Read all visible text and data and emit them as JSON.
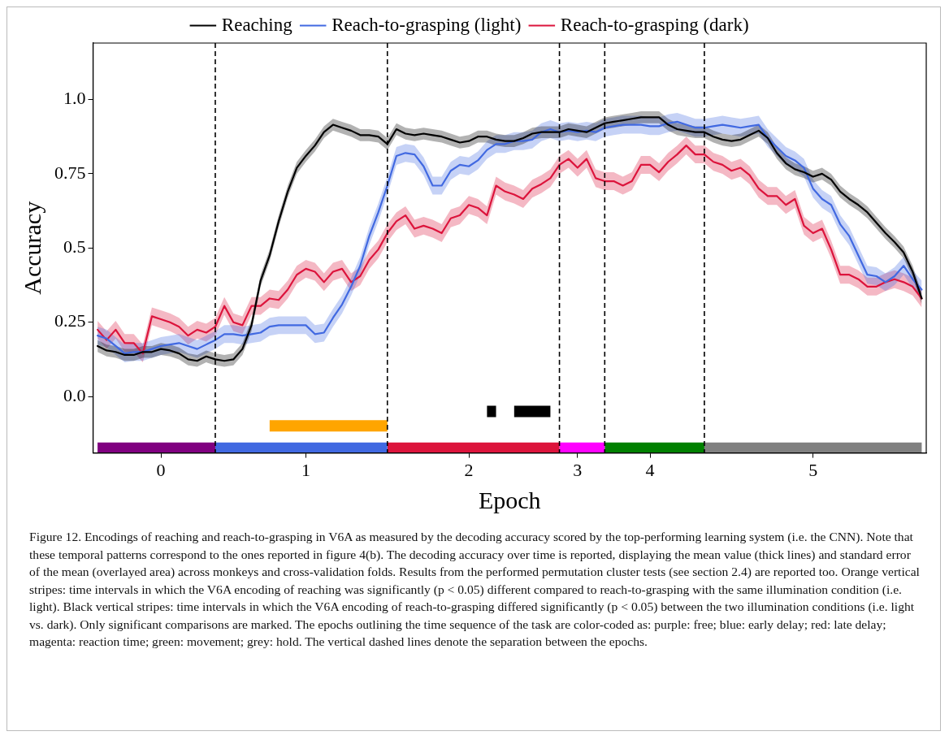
{
  "chart_data": {
    "type": "line",
    "xlabel": "Epoch",
    "ylabel": "Accuracy",
    "legend": "top",
    "line_style": "solid",
    "categories": [
      null,
      null,
      null,
      null,
      null,
      null,
      null,
      "0",
      null,
      null,
      null,
      null,
      null,
      null,
      null,
      null,
      null,
      null,
      null,
      null,
      null,
      null,
      null,
      "1",
      null,
      null,
      null,
      null,
      null,
      null,
      null,
      null,
      null,
      null,
      null,
      null,
      null,
      null,
      null,
      null,
      null,
      "2",
      null,
      null,
      null,
      null,
      null,
      null,
      null,
      null,
      null,
      null,
      null,
      "3",
      null,
      null,
      null,
      null,
      null,
      null,
      null,
      "4",
      null,
      null,
      null,
      null,
      null,
      null,
      null,
      null,
      null,
      null,
      null,
      null,
      null,
      null,
      null,
      null,
      null,
      "5",
      null,
      null,
      null,
      null,
      null,
      null,
      null,
      null,
      null,
      null,
      null,
      null
    ],
    "ylim": [
      -0.19,
      1.19
    ],
    "yticks": [
      {
        "value": 0,
        "label": "0.0"
      },
      0.25,
      0.5,
      0.75,
      {
        "value": 1,
        "label": "1.0"
      }
    ],
    "series": [
      {
        "name": "Reaching",
        "color": "#000000",
        "values": [
          0.17,
          0.155,
          0.15,
          0.14,
          0.14,
          0.15,
          0.15,
          0.16,
          0.155,
          0.145,
          0.125,
          0.12,
          0.135,
          0.125,
          0.12,
          0.125,
          0.16,
          0.24,
          0.39,
          0.475,
          0.59,
          0.69,
          0.77,
          0.81,
          0.845,
          0.89,
          0.915,
          0.905,
          0.895,
          0.88,
          0.88,
          0.875,
          0.85,
          0.9,
          0.885,
          0.88,
          0.885,
          0.88,
          0.875,
          0.865,
          0.855,
          0.86,
          0.875,
          0.875,
          0.865,
          0.86,
          0.86,
          0.87,
          0.885,
          0.89,
          0.89,
          0.89,
          0.9,
          0.895,
          0.89,
          0.905,
          0.92,
          0.925,
          0.93,
          0.935,
          0.94,
          0.94,
          0.94,
          0.915,
          0.9,
          0.895,
          0.89,
          0.89,
          0.875,
          0.865,
          0.86,
          0.865,
          0.88,
          0.895,
          0.87,
          0.82,
          0.785,
          0.765,
          0.755,
          0.74,
          0.75,
          0.73,
          0.69,
          0.665,
          0.645,
          0.62,
          0.585,
          0.55,
          0.52,
          0.485,
          0.42,
          0.33
        ],
        "lower": [
          0.15,
          0.135,
          0.13,
          0.12,
          0.12,
          0.13,
          0.13,
          0.14,
          0.135,
          0.125,
          0.105,
          0.1,
          0.115,
          0.105,
          0.1,
          0.105,
          0.14,
          0.22,
          0.37,
          0.455,
          0.57,
          0.67,
          0.75,
          0.79,
          0.825,
          0.87,
          0.895,
          0.885,
          0.875,
          0.86,
          0.86,
          0.855,
          0.83,
          0.88,
          0.865,
          0.86,
          0.865,
          0.86,
          0.855,
          0.845,
          0.835,
          0.84,
          0.855,
          0.855,
          0.845,
          0.84,
          0.84,
          0.85,
          0.865,
          0.87,
          0.87,
          0.87,
          0.88,
          0.875,
          0.87,
          0.885,
          0.9,
          0.905,
          0.91,
          0.915,
          0.92,
          0.92,
          0.92,
          0.895,
          0.88,
          0.875,
          0.87,
          0.87,
          0.855,
          0.845,
          0.84,
          0.845,
          0.86,
          0.875,
          0.85,
          0.8,
          0.765,
          0.745,
          0.735,
          0.72,
          0.73,
          0.71,
          0.67,
          0.645,
          0.625,
          0.6,
          0.565,
          0.53,
          0.5,
          0.465,
          0.4,
          0.31
        ],
        "upper": [
          0.19,
          0.175,
          0.17,
          0.16,
          0.16,
          0.17,
          0.17,
          0.18,
          0.175,
          0.165,
          0.145,
          0.14,
          0.155,
          0.145,
          0.14,
          0.145,
          0.18,
          0.26,
          0.41,
          0.495,
          0.61,
          0.71,
          0.79,
          0.83,
          0.865,
          0.91,
          0.935,
          0.925,
          0.915,
          0.9,
          0.9,
          0.895,
          0.87,
          0.92,
          0.905,
          0.9,
          0.905,
          0.9,
          0.895,
          0.885,
          0.875,
          0.88,
          0.895,
          0.895,
          0.885,
          0.88,
          0.88,
          0.89,
          0.905,
          0.91,
          0.91,
          0.91,
          0.92,
          0.915,
          0.91,
          0.925,
          0.94,
          0.945,
          0.95,
          0.955,
          0.96,
          0.96,
          0.96,
          0.935,
          0.92,
          0.915,
          0.91,
          0.91,
          0.895,
          0.885,
          0.88,
          0.885,
          0.9,
          0.915,
          0.89,
          0.84,
          0.805,
          0.785,
          0.775,
          0.76,
          0.77,
          0.75,
          0.71,
          0.685,
          0.665,
          0.64,
          0.605,
          0.57,
          0.54,
          0.505,
          0.44,
          0.35
        ]
      },
      {
        "name": "Reach-to-grasping (light)",
        "color": "#4169e1",
        "values": [
          0.205,
          0.195,
          0.17,
          0.145,
          0.15,
          0.15,
          0.16,
          0.17,
          0.175,
          0.18,
          0.17,
          0.16,
          0.175,
          0.19,
          0.21,
          0.21,
          0.205,
          0.21,
          0.215,
          0.235,
          0.24,
          0.24,
          0.24,
          0.24,
          0.21,
          0.215,
          0.265,
          0.31,
          0.37,
          0.44,
          0.54,
          0.62,
          0.71,
          0.81,
          0.82,
          0.815,
          0.775,
          0.71,
          0.71,
          0.76,
          0.78,
          0.775,
          0.795,
          0.83,
          0.85,
          0.85,
          0.86,
          0.86,
          0.865,
          0.89,
          0.9,
          0.89,
          0.895,
          0.89,
          0.895,
          0.89,
          0.905,
          0.91,
          0.915,
          0.915,
          0.915,
          0.91,
          0.91,
          0.92,
          0.925,
          0.915,
          0.905,
          0.905,
          0.91,
          0.915,
          0.91,
          0.905,
          0.91,
          0.915,
          0.87,
          0.84,
          0.81,
          0.795,
          0.77,
          0.7,
          0.665,
          0.645,
          0.58,
          0.54,
          0.475,
          0.41,
          0.405,
          0.385,
          0.405,
          0.44,
          0.395,
          0.36
        ],
        "lower": [
          0.175,
          0.165,
          0.14,
          0.115,
          0.12,
          0.12,
          0.13,
          0.14,
          0.145,
          0.15,
          0.14,
          0.13,
          0.145,
          0.16,
          0.18,
          0.18,
          0.175,
          0.18,
          0.185,
          0.205,
          0.21,
          0.21,
          0.21,
          0.21,
          0.18,
          0.185,
          0.235,
          0.28,
          0.34,
          0.41,
          0.51,
          0.59,
          0.68,
          0.78,
          0.79,
          0.785,
          0.745,
          0.68,
          0.68,
          0.73,
          0.75,
          0.745,
          0.765,
          0.8,
          0.82,
          0.82,
          0.83,
          0.83,
          0.835,
          0.86,
          0.87,
          0.86,
          0.865,
          0.86,
          0.865,
          0.86,
          0.875,
          0.88,
          0.885,
          0.885,
          0.885,
          0.88,
          0.88,
          0.89,
          0.895,
          0.885,
          0.875,
          0.875,
          0.88,
          0.885,
          0.88,
          0.875,
          0.88,
          0.885,
          0.84,
          0.81,
          0.78,
          0.765,
          0.74,
          0.67,
          0.635,
          0.615,
          0.55,
          0.51,
          0.445,
          0.38,
          0.375,
          0.355,
          0.375,
          0.41,
          0.365,
          0.33
        ],
        "upper": [
          0.235,
          0.225,
          0.2,
          0.175,
          0.18,
          0.18,
          0.19,
          0.2,
          0.205,
          0.21,
          0.2,
          0.19,
          0.205,
          0.22,
          0.24,
          0.24,
          0.235,
          0.24,
          0.245,
          0.265,
          0.27,
          0.27,
          0.27,
          0.27,
          0.24,
          0.245,
          0.295,
          0.34,
          0.4,
          0.47,
          0.57,
          0.65,
          0.74,
          0.84,
          0.85,
          0.845,
          0.805,
          0.74,
          0.74,
          0.79,
          0.81,
          0.805,
          0.825,
          0.86,
          0.88,
          0.88,
          0.89,
          0.89,
          0.895,
          0.92,
          0.93,
          0.92,
          0.925,
          0.92,
          0.925,
          0.92,
          0.935,
          0.94,
          0.945,
          0.945,
          0.945,
          0.94,
          0.94,
          0.95,
          0.955,
          0.945,
          0.935,
          0.935,
          0.94,
          0.945,
          0.94,
          0.935,
          0.94,
          0.945,
          0.9,
          0.87,
          0.84,
          0.825,
          0.8,
          0.73,
          0.695,
          0.675,
          0.61,
          0.57,
          0.505,
          0.44,
          0.435,
          0.415,
          0.435,
          0.47,
          0.425,
          0.39
        ]
      },
      {
        "name": "Reach-to-grasping (dark)",
        "color": "#dc143c",
        "values": [
          0.225,
          0.19,
          0.225,
          0.18,
          0.18,
          0.145,
          0.27,
          0.26,
          0.25,
          0.235,
          0.205,
          0.225,
          0.215,
          0.235,
          0.305,
          0.25,
          0.24,
          0.305,
          0.305,
          0.33,
          0.325,
          0.36,
          0.41,
          0.43,
          0.42,
          0.385,
          0.42,
          0.43,
          0.385,
          0.405,
          0.46,
          0.495,
          0.55,
          0.59,
          0.61,
          0.565,
          0.575,
          0.565,
          0.55,
          0.6,
          0.61,
          0.645,
          0.635,
          0.61,
          0.71,
          0.69,
          0.68,
          0.665,
          0.7,
          0.715,
          0.735,
          0.78,
          0.8,
          0.77,
          0.8,
          0.735,
          0.725,
          0.725,
          0.71,
          0.725,
          0.78,
          0.78,
          0.755,
          0.79,
          0.815,
          0.845,
          0.815,
          0.815,
          0.79,
          0.78,
          0.76,
          0.77,
          0.745,
          0.7,
          0.675,
          0.675,
          0.645,
          0.665,
          0.575,
          0.55,
          0.565,
          0.495,
          0.41,
          0.41,
          0.395,
          0.37,
          0.37,
          0.385,
          0.395,
          0.385,
          0.37,
          0.33
        ],
        "lower": [
          0.195,
          0.16,
          0.195,
          0.15,
          0.15,
          0.115,
          0.24,
          0.23,
          0.22,
          0.205,
          0.175,
          0.195,
          0.185,
          0.205,
          0.275,
          0.22,
          0.21,
          0.275,
          0.275,
          0.3,
          0.295,
          0.33,
          0.38,
          0.4,
          0.39,
          0.355,
          0.39,
          0.4,
          0.355,
          0.375,
          0.43,
          0.465,
          0.52,
          0.56,
          0.58,
          0.535,
          0.545,
          0.535,
          0.52,
          0.57,
          0.58,
          0.615,
          0.605,
          0.58,
          0.68,
          0.66,
          0.65,
          0.635,
          0.67,
          0.685,
          0.705,
          0.75,
          0.77,
          0.74,
          0.77,
          0.705,
          0.695,
          0.695,
          0.68,
          0.695,
          0.75,
          0.75,
          0.725,
          0.76,
          0.785,
          0.815,
          0.785,
          0.785,
          0.76,
          0.75,
          0.73,
          0.74,
          0.715,
          0.67,
          0.645,
          0.645,
          0.615,
          0.635,
          0.545,
          0.52,
          0.535,
          0.465,
          0.38,
          0.38,
          0.365,
          0.34,
          0.34,
          0.355,
          0.365,
          0.355,
          0.34,
          0.3
        ],
        "upper": [
          0.255,
          0.22,
          0.255,
          0.21,
          0.21,
          0.175,
          0.3,
          0.29,
          0.28,
          0.265,
          0.235,
          0.255,
          0.245,
          0.265,
          0.335,
          0.28,
          0.27,
          0.335,
          0.335,
          0.36,
          0.355,
          0.39,
          0.44,
          0.46,
          0.45,
          0.415,
          0.45,
          0.46,
          0.415,
          0.435,
          0.49,
          0.525,
          0.58,
          0.62,
          0.64,
          0.595,
          0.605,
          0.595,
          0.58,
          0.63,
          0.64,
          0.675,
          0.665,
          0.64,
          0.74,
          0.72,
          0.71,
          0.695,
          0.73,
          0.745,
          0.765,
          0.81,
          0.83,
          0.8,
          0.83,
          0.765,
          0.755,
          0.755,
          0.74,
          0.755,
          0.81,
          0.81,
          0.785,
          0.82,
          0.845,
          0.875,
          0.845,
          0.845,
          0.82,
          0.81,
          0.79,
          0.8,
          0.775,
          0.73,
          0.705,
          0.705,
          0.675,
          0.695,
          0.605,
          0.58,
          0.595,
          0.525,
          0.44,
          0.44,
          0.425,
          0.4,
          0.4,
          0.415,
          0.425,
          0.415,
          0.4,
          0.36
        ]
      },
      {
        "color": "#800080",
        "values": [
          -0.174,
          -0.174,
          -0.174,
          -0.174,
          -0.174,
          -0.174,
          -0.174,
          -0.174,
          -0.174,
          -0.174,
          -0.174,
          -0.174,
          -0.174,
          -0.174,
          null,
          null,
          null,
          null,
          null,
          null,
          null,
          null,
          null,
          null,
          null,
          null,
          null,
          null,
          null,
          null,
          null,
          null,
          null,
          null,
          null,
          null,
          null,
          null,
          null,
          null,
          null,
          null,
          null,
          null,
          null,
          null,
          null,
          null,
          null,
          null,
          null,
          null,
          null,
          null,
          null,
          null,
          null,
          null,
          null,
          null,
          null,
          null,
          null,
          null,
          null,
          null,
          null,
          null,
          null,
          null,
          null,
          null,
          null,
          null,
          null,
          null,
          null,
          null,
          null,
          null,
          null,
          null,
          null,
          null,
          null,
          null,
          null,
          null,
          null,
          null,
          null,
          null
        ]
      },
      {
        "color": "#4169e1",
        "values": [
          null,
          null,
          null,
          null,
          null,
          null,
          null,
          null,
          null,
          null,
          null,
          null,
          null,
          -0.174,
          -0.174,
          -0.174,
          -0.174,
          -0.174,
          -0.174,
          -0.174,
          -0.174,
          -0.174,
          -0.174,
          -0.174,
          -0.174,
          -0.174,
          -0.174,
          -0.174,
          -0.174,
          -0.174,
          -0.174,
          -0.174,
          -0.174,
          null,
          null,
          null,
          null,
          null,
          null,
          null,
          null,
          null,
          null,
          null,
          null,
          null,
          null,
          null,
          null,
          null,
          null,
          null,
          null,
          null,
          null,
          null,
          null,
          null,
          null,
          null,
          null,
          null,
          null,
          null,
          null,
          null,
          null,
          null,
          null,
          null,
          null,
          null,
          null,
          null,
          null,
          null,
          null,
          null,
          null,
          null,
          null,
          null,
          null,
          null,
          null,
          null,
          null,
          null,
          null,
          null,
          null,
          null
        ]
      },
      {
        "color": "#dc143c",
        "values": [
          null,
          null,
          null,
          null,
          null,
          null,
          null,
          null,
          null,
          null,
          null,
          null,
          null,
          null,
          null,
          null,
          null,
          null,
          null,
          null,
          null,
          null,
          null,
          null,
          null,
          null,
          null,
          null,
          null,
          null,
          null,
          null,
          -0.174,
          -0.174,
          -0.174,
          -0.174,
          -0.174,
          -0.174,
          -0.174,
          -0.174,
          -0.174,
          -0.174,
          -0.174,
          -0.174,
          -0.174,
          -0.174,
          -0.174,
          -0.174,
          -0.174,
          -0.174,
          -0.174,
          -0.174,
          null,
          null,
          null,
          null,
          null,
          null,
          null,
          null,
          null,
          null,
          null,
          null,
          null,
          null,
          null,
          null,
          null,
          null,
          null,
          null,
          null,
          null,
          null,
          null,
          null,
          null,
          null,
          null,
          null,
          null,
          null,
          null,
          null,
          null,
          null,
          null,
          null,
          null,
          null,
          null
        ]
      },
      {
        "color": "#ff00ff",
        "values": [
          null,
          null,
          null,
          null,
          null,
          null,
          null,
          null,
          null,
          null,
          null,
          null,
          null,
          null,
          null,
          null,
          null,
          null,
          null,
          null,
          null,
          null,
          null,
          null,
          null,
          null,
          null,
          null,
          null,
          null,
          null,
          null,
          null,
          null,
          null,
          null,
          null,
          null,
          null,
          null,
          null,
          null,
          null,
          null,
          null,
          null,
          null,
          null,
          null,
          null,
          null,
          -0.174,
          -0.174,
          -0.174,
          -0.174,
          -0.174,
          -0.174,
          null,
          null,
          null,
          null,
          null,
          null,
          null,
          null,
          null,
          null,
          null,
          null,
          null,
          null,
          null,
          null,
          null,
          null,
          null,
          null,
          null,
          null,
          null,
          null,
          null,
          null,
          null,
          null,
          null,
          null,
          null,
          null,
          null,
          null,
          null
        ]
      },
      {
        "color": "#008000",
        "values": [
          null,
          null,
          null,
          null,
          null,
          null,
          null,
          null,
          null,
          null,
          null,
          null,
          null,
          null,
          null,
          null,
          null,
          null,
          null,
          null,
          null,
          null,
          null,
          null,
          null,
          null,
          null,
          null,
          null,
          null,
          null,
          null,
          null,
          null,
          null,
          null,
          null,
          null,
          null,
          null,
          null,
          null,
          null,
          null,
          null,
          null,
          null,
          null,
          null,
          null,
          null,
          null,
          null,
          null,
          null,
          null,
          -0.174,
          -0.174,
          -0.174,
          -0.174,
          -0.174,
          -0.174,
          -0.174,
          -0.174,
          -0.174,
          -0.174,
          -0.174,
          -0.174,
          null,
          null,
          null,
          null,
          null,
          null,
          null,
          null,
          null,
          null,
          null,
          null,
          null,
          null,
          null,
          null,
          null,
          null,
          null,
          null,
          null,
          null,
          null,
          null
        ]
      },
      {
        "color": "#808080",
        "values": [
          null,
          null,
          null,
          null,
          null,
          null,
          null,
          null,
          null,
          null,
          null,
          null,
          null,
          null,
          null,
          null,
          null,
          null,
          null,
          null,
          null,
          null,
          null,
          null,
          null,
          null,
          null,
          null,
          null,
          null,
          null,
          null,
          null,
          null,
          null,
          null,
          null,
          null,
          null,
          null,
          null,
          null,
          null,
          null,
          null,
          null,
          null,
          null,
          null,
          null,
          null,
          null,
          null,
          null,
          null,
          null,
          null,
          null,
          null,
          null,
          null,
          null,
          null,
          null,
          null,
          null,
          null,
          -0.174,
          -0.174,
          -0.174,
          -0.174,
          -0.174,
          -0.174,
          -0.174,
          -0.174,
          -0.174,
          -0.174,
          -0.174,
          -0.174,
          -0.174,
          -0.174,
          -0.174,
          -0.174,
          -0.174,
          -0.174,
          -0.174,
          -0.174,
          -0.174,
          -0.174,
          -0.174,
          -0.174,
          -0.174
        ]
      },
      {
        "color": "#ffa500",
        "values": [
          null,
          null,
          null,
          null,
          null,
          null,
          null,
          null,
          null,
          null,
          null,
          null,
          null,
          null,
          null,
          null,
          null,
          null,
          null,
          -0.099,
          -0.099,
          -0.099,
          -0.099,
          -0.099,
          -0.099,
          -0.099,
          -0.099,
          -0.099,
          -0.099,
          -0.099,
          -0.099,
          -0.099,
          -0.099,
          null,
          null,
          null,
          null,
          null,
          null,
          null,
          null,
          null,
          null,
          null,
          null,
          null,
          null,
          null,
          null,
          null,
          null,
          null,
          null,
          null,
          null,
          null,
          null,
          null,
          null,
          null,
          null,
          null,
          null,
          null,
          null,
          null,
          null,
          null,
          null,
          null,
          null,
          null,
          null,
          null,
          null,
          null,
          null,
          null,
          null,
          null,
          null,
          null,
          null,
          null,
          null,
          null,
          null,
          null,
          null,
          null,
          null,
          null
        ]
      },
      {
        "color": "#000000",
        "values": [
          null,
          null,
          null,
          null,
          null,
          null,
          null,
          null,
          null,
          null,
          null,
          null,
          null,
          null,
          null,
          null,
          null,
          null,
          null,
          null,
          null,
          null,
          null,
          null,
          null,
          null,
          null,
          null,
          null,
          null,
          null,
          null,
          null,
          null,
          null,
          null,
          null,
          null,
          null,
          null,
          null,
          null,
          null,
          -0.05,
          -0.05,
          null,
          -0.05,
          -0.05,
          -0.05,
          -0.05,
          -0.05,
          null,
          null,
          null,
          null,
          null,
          null,
          null,
          null,
          null,
          null,
          null,
          null,
          null,
          null,
          null,
          null,
          null,
          null,
          null,
          null,
          null,
          null,
          null,
          null,
          null,
          null,
          null,
          null,
          null,
          null,
          null,
          null,
          null,
          null,
          null,
          null,
          null,
          null,
          null,
          null,
          null
        ]
      }
    ],
    "annotations": [
      "Figure 12. Encodings of reaching and reach-to-grasping in V6A as measured by the decoding accuracy scored by the top-performing learning system (i.e. the CNN). Note that these temporal patterns correspond to the ones reported in figure 4(b). The decoding accuracy over time is reported, displaying the mean value (thick lines) and standard error of the mean (overlayed area) across monkeys and cross-validation folds. Results from the performed permutation cluster tests (see section 2.4) are reported too. Orange vertical stripes: time intervals in which the V6A encoding of reaching was significantly (p < 0.05) different compared to reach-to-grasping with the same illumination condition (i.e. light). Black vertical stripes: time intervals in which the V6A encoding of reach-to-grasping differed significantly (p < 0.05) between the two illumination conditions (i.e. light vs. dark). Only significant comparisons are marked. The epochs outlining the time sequence of the task are color-coded as: purple: free; blue: early delay; red: late delay; magenta: reaction time; green: movement; grey: hold. The vertical dashed lines denote the separation between the epochs."
    ]
  }
}
